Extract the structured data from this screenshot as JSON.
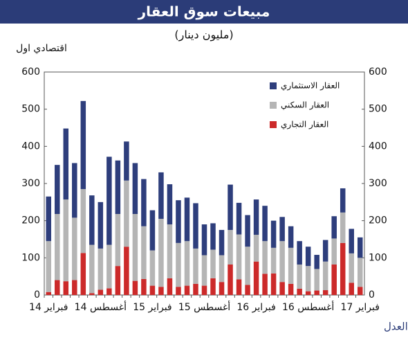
{
  "chart_data": {
    "type": "stacked-bar",
    "title": "مبيعات سوق العقار",
    "subtitle": "(مليون دينار)",
    "brand": "اقتصادي اول",
    "source": "المصدر: وزارة العدل",
    "categories": [
      "فبراير 14",
      null,
      null,
      null,
      null,
      null,
      "أغسطس 14",
      null,
      null,
      null,
      null,
      null,
      "فبراير 15",
      null,
      null,
      null,
      null,
      null,
      "أغسطس 15",
      null,
      null,
      null,
      null,
      null,
      "فبراير 16",
      null,
      null,
      null,
      null,
      null,
      "أغسطس 16",
      null,
      null,
      null,
      null,
      null,
      "فبراير 17"
    ],
    "series": [
      {
        "name": "العقار التجاري",
        "color": "#cc2a2a",
        "values": [
          8,
          40,
          37,
          40,
          113,
          5,
          14,
          18,
          78,
          130,
          38,
          43,
          25,
          22,
          45,
          22,
          25,
          30,
          25,
          45,
          35,
          82,
          42,
          27,
          90,
          57,
          58,
          35,
          30,
          17,
          10,
          12,
          13,
          82,
          140,
          33,
          22
        ]
      },
      {
        "name": "العقار السكني",
        "color": "#b5b5b5",
        "values": [
          137,
          178,
          220,
          168,
          172,
          130,
          111,
          117,
          140,
          178,
          180,
          142,
          95,
          183,
          145,
          118,
          120,
          95,
          82,
          77,
          72,
          93,
          121,
          103,
          72,
          88,
          69,
          110,
          97,
          65,
          68,
          58,
          77,
          70,
          82,
          79,
          78
        ]
      },
      {
        "name": "العقار الاستثماري",
        "color": "#2e3e7c",
        "values": [
          120,
          132,
          191,
          147,
          237,
          133,
          125,
          237,
          144,
          105,
          137,
          127,
          108,
          125,
          108,
          115,
          117,
          122,
          83,
          71,
          68,
          122,
          85,
          85,
          95,
          95,
          73,
          65,
          58,
          63,
          52,
          38,
          58,
          60,
          65,
          66,
          55
        ]
      }
    ],
    "ylim": [
      0,
      600
    ],
    "yticks": [
      0,
      100,
      200,
      300,
      400,
      500,
      600
    ],
    "y2lim": [
      0,
      600
    ],
    "y2ticks": [
      0,
      100,
      200,
      300,
      400,
      500,
      600
    ],
    "legend": "top-right"
  }
}
